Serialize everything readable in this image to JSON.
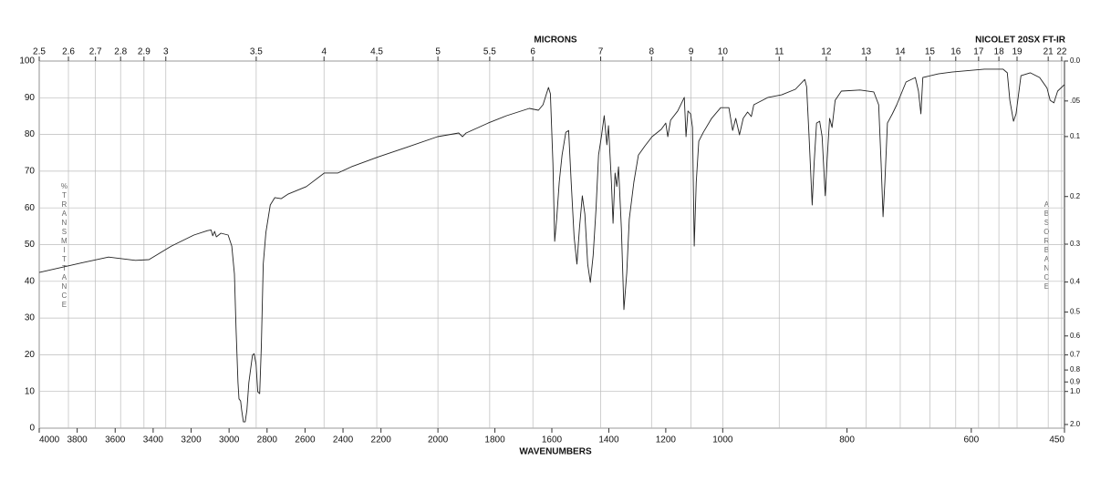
{
  "chart_data": {
    "type": "line",
    "title": "NICOLET 20SX FT-IR",
    "x_label": "WAVENUMBERS",
    "x2_label": "MICRONS",
    "y_label": "%TRANSMITTANCE",
    "y2_label": "ABSORBANCE",
    "xlim": [
      4000,
      450
    ],
    "xbreaks": [
      2200,
      1000
    ],
    "xticks": [
      4000,
      3800,
      3600,
      3400,
      3200,
      3000,
      2800,
      2600,
      2400,
      2200,
      2000,
      1800,
      1600,
      1400,
      1200,
      1000,
      800,
      600,
      450
    ],
    "x2ticks": [
      2.5,
      2.6,
      2.7,
      2.8,
      2.9,
      3,
      3.5,
      4,
      4.5,
      5,
      5.5,
      6,
      7,
      8,
      9,
      10,
      11,
      12,
      13,
      14,
      15,
      16,
      17,
      18,
      19,
      21,
      22
    ],
    "ylim": [
      0,
      100
    ],
    "yticks": [
      0,
      10,
      20,
      30,
      40,
      50,
      60,
      70,
      80,
      90,
      100
    ],
    "y2ticks": [
      {
        "value": 0,
        "label": "0.0"
      },
      {
        "value": 0.05,
        "label": ".05"
      },
      0.1,
      0.2,
      0.3,
      0.4,
      0.5,
      0.6,
      0.7,
      0.8,
      0.9,
      {
        "value": 1,
        "label": "1.0"
      },
      {
        "value": 2,
        "label": "2.0"
      }
    ],
    "grid": true,
    "color": "#222222",
    "x": [
      4000,
      3777,
      3635,
      3493,
      3422,
      3304,
      3185,
      3114,
      3095,
      3086,
      3076,
      3067,
      3043,
      3005,
      2986,
      2972,
      2963,
      2953,
      2948,
      2939,
      2934,
      2925,
      2915,
      2906,
      2896,
      2877,
      2868,
      2858,
      2849,
      2839,
      2830,
      2820,
      2806,
      2783,
      2759,
      2726,
      2688,
      2593,
      2498,
      2427,
      2356,
      2214,
      2113,
      2001,
      1927,
      1914,
      1901,
      1824,
      1759,
      1679,
      1647,
      1631,
      1612,
      1605,
      1596,
      1590,
      1583,
      1574,
      1564,
      1551,
      1541,
      1532,
      1522,
      1512,
      1503,
      1493,
      1484,
      1474,
      1465,
      1455,
      1445,
      1436,
      1426,
      1416,
      1407,
      1401,
      1391,
      1385,
      1378,
      1372,
      1366,
      1356,
      1347,
      1337,
      1328,
      1312,
      1296,
      1273,
      1248,
      1216,
      1200,
      1193,
      1183,
      1158,
      1135,
      1129,
      1122,
      1113,
      1106,
      1100,
      1093,
      1084,
      1068,
      1039,
      1007,
      990,
      984,
      979,
      973,
      967,
      960,
      954,
      950,
      927,
      905,
      883,
      868,
      865,
      861,
      856,
      853,
      849,
      844,
      840,
      835,
      832,
      828,
      824,
      819,
      809,
      779,
      757,
      749,
      745,
      742,
      739,
      735,
      727,
      720,
      705,
      690,
      685,
      681,
      678,
      653,
      631,
      579,
      549,
      542,
      538,
      532,
      528,
      520,
      505,
      490,
      478,
      473,
      467,
      461,
      450
    ],
    "values": [
      42.4,
      45,
      46.6,
      45.7,
      45.9,
      49.6,
      52.6,
      53.8,
      54,
      52.4,
      53.6,
      52.1,
      53.1,
      52.6,
      49.6,
      42,
      27,
      12.4,
      8,
      7.4,
      5,
      1.7,
      1.7,
      5,
      12.4,
      19.9,
      20.3,
      17.4,
      9.9,
      9.4,
      22.3,
      44.7,
      53.3,
      60.8,
      62.8,
      62.5,
      63.8,
      65.8,
      69.5,
      69.5,
      71.2,
      73.9,
      76.4,
      79.4,
      80.4,
      79.4,
      80.4,
      83.1,
      85.1,
      87.1,
      86.6,
      88.1,
      92.8,
      91.1,
      72,
      50.9,
      57,
      67,
      74.4,
      80.6,
      81.1,
      67,
      52.1,
      44.7,
      54.6,
      63.3,
      58.3,
      44.7,
      39.7,
      47.1,
      59.6,
      74.4,
      79.4,
      85.1,
      77.2,
      82.4,
      67,
      55.8,
      69.5,
      65.8,
      71.2,
      54.6,
      32.3,
      42.2,
      57,
      67,
      74.4,
      76.9,
      79.4,
      81.4,
      83.1,
      79.4,
      83.9,
      86.4,
      90.1,
      79.4,
      86.4,
      85.6,
      81.9,
      49.6,
      67,
      78.2,
      80.6,
      84.4,
      87.3,
      87.3,
      81.1,
      84.4,
      79.9,
      84.4,
      86.1,
      84.9,
      88.1,
      90.1,
      90.8,
      92.3,
      95,
      93,
      79.4,
      60.8,
      72,
      83.1,
      83.6,
      79.4,
      63.3,
      73.2,
      84.4,
      81.9,
      89.3,
      91.8,
      92.1,
      91.6,
      88.1,
      72,
      57.6,
      67,
      83.1,
      85.6,
      88.1,
      94.3,
      95.5,
      91.8,
      85.6,
      95.5,
      96.5,
      97,
      97.8,
      97.8,
      96.8,
      89.3,
      83.6,
      85.6,
      96,
      96.8,
      95.5,
      92.6,
      89.3,
      88.6,
      91.8,
      93.6
    ]
  }
}
